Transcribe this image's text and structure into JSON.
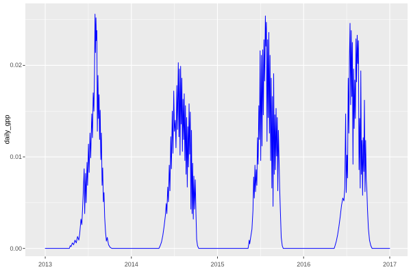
{
  "figure": {
    "background": "#FFFFFF",
    "panel_background": "#EBEBEB",
    "grid_color": "#FFFFFF",
    "axis_text_color": "#4D4D4D",
    "axis_title_color": "#000000",
    "tick_mark_color": "#333333"
  },
  "chart_data": {
    "type": "line",
    "title": "",
    "xlabel": "",
    "ylabel": "daily_gpp",
    "legend": "none",
    "grid": "on",
    "line_color": "#0000FF",
    "x_ticks": [
      2013,
      2014,
      2015,
      2016,
      2017
    ],
    "x_tick_labels": [
      "2013",
      "2014",
      "2015",
      "2016",
      "2017"
    ],
    "x_minor_breaks": [
      2013.5,
      2014.5,
      2015.5,
      2016.5
    ],
    "y_ticks": [
      0,
      0.01,
      0.02
    ],
    "y_tick_labels": [
      "0.00",
      "0.01",
      "0.02"
    ],
    "y_minor_breaks": [
      0.005,
      0.015,
      0.025
    ],
    "xlim": [
      2012.769,
      2017.207
    ],
    "ylim": [
      -0.00085,
      0.02677
    ],
    "series": [
      {
        "name": "daily_gpp",
        "points": [
          [
            2013.0,
            0
          ],
          [
            2013.28,
            0
          ],
          [
            2013.29,
            0.0003
          ],
          [
            2013.3,
            0.0002
          ],
          [
            2013.315,
            0.0006
          ],
          [
            2013.33,
            0.0004
          ],
          [
            2013.345,
            0.0009
          ],
          [
            2013.36,
            0.0006
          ],
          [
            2013.375,
            0.0013
          ],
          [
            2013.39,
            0.0009
          ],
          [
            2013.4,
            0.0016
          ],
          [
            2013.415,
            0.0032
          ],
          [
            2013.425,
            0.0026
          ],
          [
            2013.44,
            0.0058
          ],
          [
            2013.452,
            0.0087
          ],
          [
            2013.458,
            0.0038
          ],
          [
            2013.468,
            0.0082
          ],
          [
            2013.475,
            0.005
          ],
          [
            2013.485,
            0.0094
          ],
          [
            2013.492,
            0.0069
          ],
          [
            2013.502,
            0.0114
          ],
          [
            2013.51,
            0.0083
          ],
          [
            2013.52,
            0.0126
          ],
          [
            2013.528,
            0.0099
          ],
          [
            2013.54,
            0.0147
          ],
          [
            2013.548,
            0.0121
          ],
          [
            2013.557,
            0.017
          ],
          [
            2013.565,
            0.015
          ],
          [
            2013.572,
            0.0192
          ],
          [
            2013.578,
            0.0256
          ],
          [
            2013.583,
            0.0214
          ],
          [
            2013.589,
            0.0252
          ],
          [
            2013.594,
            0.0227
          ],
          [
            2013.599,
            0.0238
          ],
          [
            2013.605,
            0.0128
          ],
          [
            2013.612,
            0.0189
          ],
          [
            2013.618,
            0.0142
          ],
          [
            2013.625,
            0.0168
          ],
          [
            2013.631,
            0.0119
          ],
          [
            2013.638,
            0.0151
          ],
          [
            2013.645,
            0.0097
          ],
          [
            2013.652,
            0.0126
          ],
          [
            2013.66,
            0.0069
          ],
          [
            2013.667,
            0.0088
          ],
          [
            2013.675,
            0.0051
          ],
          [
            2013.682,
            0.0061
          ],
          [
            2013.69,
            0.0034
          ],
          [
            2013.7,
            0.0018
          ],
          [
            2013.71,
            0.0008
          ],
          [
            2013.72,
            0.0012
          ],
          [
            2013.735,
            0.0004
          ],
          [
            2013.755,
            0.0001
          ],
          [
            2013.775,
            0
          ],
          [
            2014.32,
            0
          ],
          [
            2014.335,
            0.0003
          ],
          [
            2014.35,
            0.0007
          ],
          [
            2014.365,
            0.0014
          ],
          [
            2014.38,
            0.0024
          ],
          [
            2014.395,
            0.0036
          ],
          [
            2014.405,
            0.0049
          ],
          [
            2014.412,
            0.0038
          ],
          [
            2014.422,
            0.0067
          ],
          [
            2014.43,
            0.0051
          ],
          [
            2014.44,
            0.0091
          ],
          [
            2014.448,
            0.0063
          ],
          [
            2014.458,
            0.0122
          ],
          [
            2014.465,
            0.0087
          ],
          [
            2014.475,
            0.015
          ],
          [
            2014.483,
            0.0104
          ],
          [
            2014.492,
            0.0172
          ],
          [
            2014.5,
            0.0128
          ],
          [
            2014.51,
            0.014
          ],
          [
            2014.518,
            0.011
          ],
          [
            2014.528,
            0.0178
          ],
          [
            2014.535,
            0.013
          ],
          [
            2014.545,
            0.0203
          ],
          [
            2014.552,
            0.0122
          ],
          [
            2014.558,
            0.0196
          ],
          [
            2014.565,
            0.0102
          ],
          [
            2014.572,
            0.0199
          ],
          [
            2014.579,
            0.0136
          ],
          [
            2014.586,
            0.0186
          ],
          [
            2014.593,
            0.0106
          ],
          [
            2014.6,
            0.0163
          ],
          [
            2014.607,
            0.0119
          ],
          [
            2014.614,
            0.0169
          ],
          [
            2014.621,
            0.0096
          ],
          [
            2014.628,
            0.0156
          ],
          [
            2014.635,
            0.0081
          ],
          [
            2014.642,
            0.0143
          ],
          [
            2014.649,
            0.0067
          ],
          [
            2014.656,
            0.0133
          ],
          [
            2014.663,
            0.0089
          ],
          [
            2014.67,
            0.0158
          ],
          [
            2014.677,
            0.0103
          ],
          [
            2014.684,
            0.0149
          ],
          [
            2014.691,
            0.0043
          ],
          [
            2014.698,
            0.0129
          ],
          [
            2014.705,
            0.0038
          ],
          [
            2014.712,
            0.0093
          ],
          [
            2014.719,
            0.0032
          ],
          [
            2014.726,
            0.0079
          ],
          [
            2014.733,
            0.0043
          ],
          [
            2014.742,
            0.0075
          ],
          [
            2014.75,
            0.0038
          ],
          [
            2014.758,
            0.001
          ],
          [
            2014.768,
            0.0003
          ],
          [
            2014.782,
            0
          ],
          [
            2015.355,
            0
          ],
          [
            2015.362,
            0.0004
          ],
          [
            2015.368,
            0.0009
          ],
          [
            2015.374,
            0.0005
          ],
          [
            2015.385,
            0.0012
          ],
          [
            2015.4,
            0.0021
          ],
          [
            2015.412,
            0.0042
          ],
          [
            2015.42,
            0.0078
          ],
          [
            2015.427,
            0.0055
          ],
          [
            2015.435,
            0.0091
          ],
          [
            2015.442,
            0.0062
          ],
          [
            2015.45,
            0.0086
          ],
          [
            2015.457,
            0.0069
          ],
          [
            2015.465,
            0.0121
          ],
          [
            2015.472,
            0.0092
          ],
          [
            2015.48,
            0.0156
          ],
          [
            2015.487,
            0.0119
          ],
          [
            2015.495,
            0.0216
          ],
          [
            2015.502,
            0.0096
          ],
          [
            2015.51,
            0.0211
          ],
          [
            2015.517,
            0.0112
          ],
          [
            2015.525,
            0.0217
          ],
          [
            2015.532,
            0.0146
          ],
          [
            2015.54,
            0.0228
          ],
          [
            2015.548,
            0.0183
          ],
          [
            2015.556,
            0.0254
          ],
          [
            2015.562,
            0.0221
          ],
          [
            2015.568,
            0.0247
          ],
          [
            2015.575,
            0.0117
          ],
          [
            2015.582,
            0.0228
          ],
          [
            2015.589,
            0.0143
          ],
          [
            2015.596,
            0.0236
          ],
          [
            2015.603,
            0.0126
          ],
          [
            2015.61,
            0.0211
          ],
          [
            2015.617,
            0.0096
          ],
          [
            2015.624,
            0.0186
          ],
          [
            2015.631,
            0.0066
          ],
          [
            2015.638,
            0.0166
          ],
          [
            2015.645,
            0.0046
          ],
          [
            2015.652,
            0.0191
          ],
          [
            2015.659,
            0.0081
          ],
          [
            2015.666,
            0.0146
          ],
          [
            2015.673,
            0.0086
          ],
          [
            2015.68,
            0.0153
          ],
          [
            2015.687,
            0.0101
          ],
          [
            2015.694,
            0.0143
          ],
          [
            2015.7,
            0.0063
          ],
          [
            2015.707,
            0.0129
          ],
          [
            2015.715,
            0.0096
          ],
          [
            2015.722,
            0.0066
          ],
          [
            2015.73,
            0.0041
          ],
          [
            2015.74,
            0.0012
          ],
          [
            2015.752,
            0.0003
          ],
          [
            2015.763,
            0
          ],
          [
            2016.355,
            0
          ],
          [
            2016.365,
            0.0003
          ],
          [
            2016.38,
            0.0008
          ],
          [
            2016.395,
            0.0015
          ],
          [
            2016.41,
            0.0024
          ],
          [
            2016.425,
            0.0035
          ],
          [
            2016.44,
            0.0047
          ],
          [
            2016.455,
            0.0055
          ],
          [
            2016.468,
            0.0052
          ],
          [
            2016.478,
            0.0066
          ],
          [
            2016.488,
            0.0147
          ],
          [
            2016.495,
            0.0061
          ],
          [
            2016.503,
            0.0102
          ],
          [
            2016.51,
            0.0077
          ],
          [
            2016.518,
            0.0186
          ],
          [
            2016.525,
            0.0126
          ],
          [
            2016.532,
            0.0207
          ],
          [
            2016.539,
            0.0246
          ],
          [
            2016.546,
            0.0157
          ],
          [
            2016.553,
            0.0238
          ],
          [
            2016.56,
            0.0166
          ],
          [
            2016.566,
            0.0225
          ],
          [
            2016.573,
            0.0092
          ],
          [
            2016.58,
            0.0196
          ],
          [
            2016.587,
            0.0131
          ],
          [
            2016.594,
            0.0184
          ],
          [
            2016.601,
            0.0142
          ],
          [
            2016.608,
            0.0229
          ],
          [
            2016.615,
            0.0182
          ],
          [
            2016.622,
            0.0233
          ],
          [
            2016.629,
            0.0202
          ],
          [
            2016.636,
            0.0227
          ],
          [
            2016.643,
            0.0086
          ],
          [
            2016.65,
            0.0142
          ],
          [
            2016.657,
            0.0066
          ],
          [
            2016.664,
            0.0194
          ],
          [
            2016.671,
            0.0081
          ],
          [
            2016.678,
            0.0118
          ],
          [
            2016.685,
            0.0058
          ],
          [
            2016.692,
            0.0121
          ],
          [
            2016.699,
            0.0084
          ],
          [
            2016.706,
            0.0162
          ],
          [
            2016.713,
            0.0062
          ],
          [
            2016.72,
            0.0118
          ],
          [
            2016.727,
            0.0076
          ],
          [
            2016.734,
            0.0064
          ],
          [
            2016.742,
            0.0042
          ],
          [
            2016.752,
            0.0022
          ],
          [
            2016.765,
            0.0009
          ],
          [
            2016.78,
            0.0003
          ],
          [
            2016.795,
            0
          ],
          [
            2017.0,
            0
          ]
        ]
      }
    ]
  }
}
